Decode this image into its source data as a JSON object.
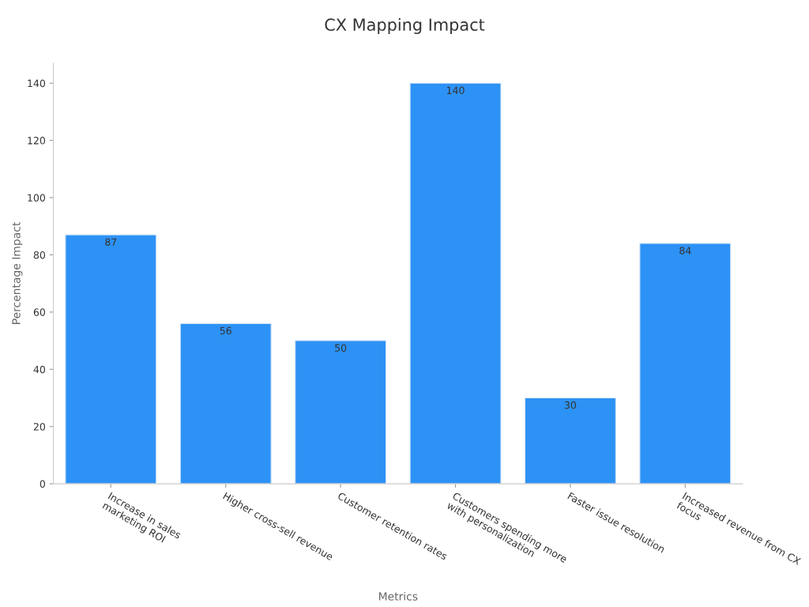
{
  "chart_data": {
    "type": "bar",
    "title": "CX Mapping Impact",
    "xlabel": "Metrics",
    "ylabel": "Percentage Impact",
    "categories": [
      "Increase in sales\nmarketing ROI",
      "Higher cross-sell revenue",
      "Customer retention rates",
      "Customers spending more\nwith personalization",
      "Faster issue resolution",
      "Increased revenue from CX\nfocus"
    ],
    "values": [
      87,
      56,
      50,
      140,
      30,
      84
    ],
    "color": "#2d92f5",
    "ylim": [
      0,
      147
    ],
    "yticks": [
      0,
      20,
      40,
      60,
      80,
      100,
      120,
      140
    ],
    "grid": false,
    "data_labels": true
  }
}
